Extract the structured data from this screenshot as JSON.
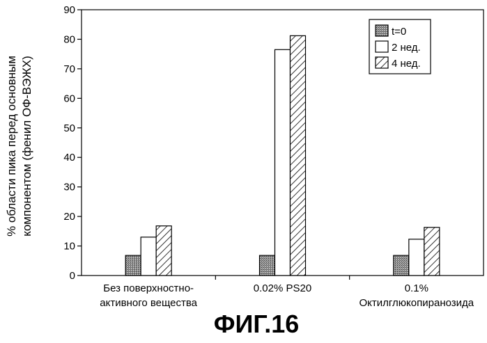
{
  "figure_label": "ФИГ.16",
  "chart_data": {
    "type": "bar",
    "ylabel_lines": [
      "% области пика перед основным",
      "компонентом (фенил ОФ-ВЭЖХ)"
    ],
    "xlabel": "",
    "ylim": [
      0,
      90
    ],
    "yticks": [
      0,
      10,
      20,
      30,
      40,
      50,
      60,
      70,
      80,
      90
    ],
    "categories": [
      [
        "Без поверхностно-",
        "активного вещества"
      ],
      [
        "0.02% PS20"
      ],
      [
        "0.1%",
        "Октилглюкопиранозида"
      ]
    ],
    "series": [
      {
        "name": "t=0",
        "pattern": "dotted",
        "values": [
          6.8,
          6.8,
          6.8
        ]
      },
      {
        "name": "2 нед.",
        "pattern": "white",
        "values": [
          13.0,
          76.5,
          12.3
        ]
      },
      {
        "name": "4 нед.",
        "pattern": "hatched",
        "values": [
          16.8,
          81.2,
          16.3
        ]
      }
    ],
    "legend_position": "top-right",
    "grid": false
  }
}
